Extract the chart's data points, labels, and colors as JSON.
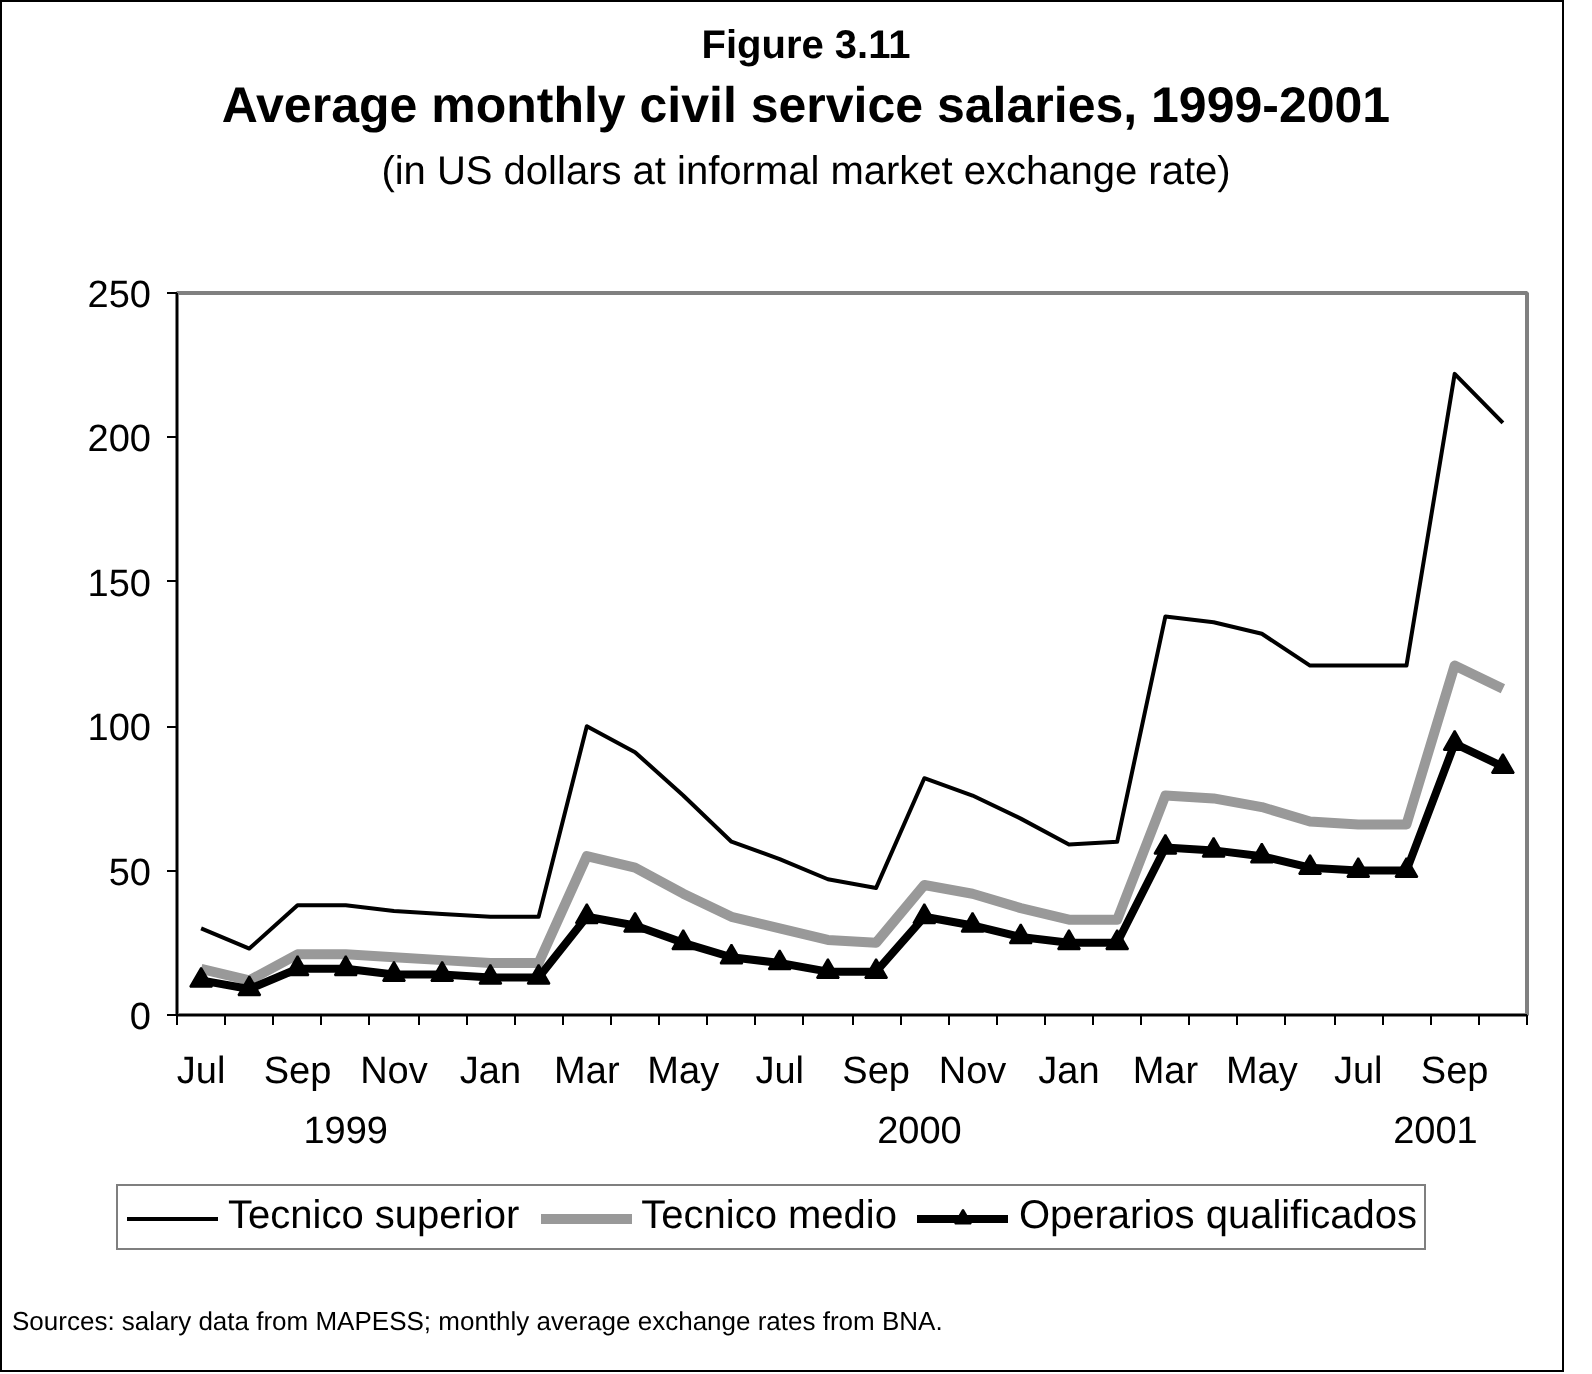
{
  "chart_data": {
    "type": "line",
    "title": "Average monthly civil service salaries, 1999-2001",
    "subtitle": "(in US dollars at informal market exchange rate)",
    "categories": [
      "Jul",
      null,
      "Sep",
      null,
      "Nov",
      null,
      "Jan",
      null,
      "Mar",
      null,
      "May",
      null,
      "Jul",
      null,
      "Sep",
      null,
      "Nov",
      null,
      "Jan",
      null,
      "Mar",
      null,
      "May",
      null,
      "Jul",
      null,
      "Sep",
      null
    ],
    "series": [
      {
        "name": "Tecnico superior",
        "color": "#000000",
        "values": [
          30,
          23,
          38,
          38,
          36,
          35,
          34,
          34,
          100,
          91,
          76,
          60,
          54,
          47,
          44,
          82,
          76,
          68,
          59,
          60,
          138,
          136,
          132,
          121,
          121,
          121,
          222,
          205
        ]
      },
      {
        "name": "Tecnico medio",
        "color": "#999999",
        "values": [
          16,
          12,
          21,
          21,
          20,
          19,
          18,
          18,
          55,
          51,
          42,
          34,
          30,
          26,
          25,
          45,
          42,
          37,
          33,
          33,
          76,
          75,
          72,
          67,
          66,
          66,
          121,
          113
        ]
      },
      {
        "name": "Operarios qualificados",
        "color": "#000000",
        "marker": "triangle",
        "values": [
          12,
          9,
          16,
          16,
          14,
          14,
          13,
          13,
          34,
          31,
          25,
          20,
          18,
          15,
          15,
          34,
          31,
          27,
          25,
          25,
          58,
          57,
          55,
          51,
          50,
          50,
          94,
          86
        ]
      }
    ],
    "ylim": [
      0,
      250
    ],
    "yticks": [
      0,
      50,
      100,
      150,
      200,
      250
    ],
    "legend": "bottom",
    "annotations": [
      "Figure 3.11",
      "1999",
      "2000",
      "2001",
      "Sources: salary data from MAPESS; monthly average exchange rates from BNA."
    ]
  }
}
